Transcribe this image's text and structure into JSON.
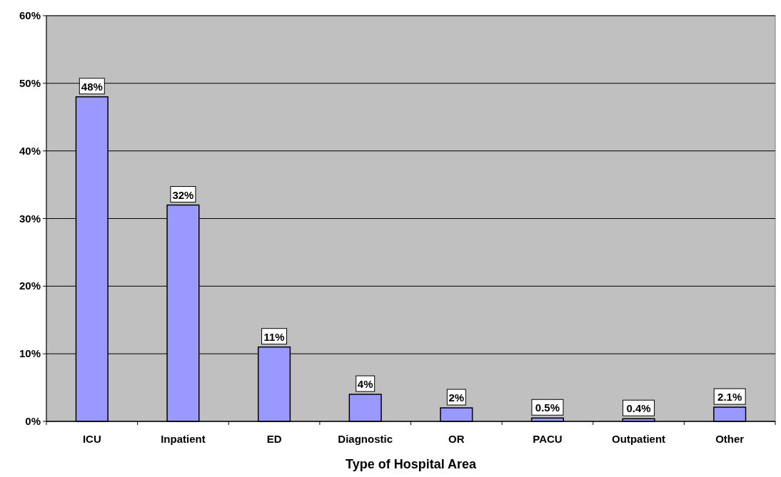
{
  "chart_data": {
    "type": "bar",
    "xlabel": "Type of Hospital Area",
    "categories": [
      "ICU",
      "Inpatient",
      "ED",
      "Diagnostic",
      "OR",
      "PACU",
      "Outpatient",
      "Other"
    ],
    "values": [
      48,
      32,
      11,
      4,
      2,
      0.5,
      0.4,
      2.1
    ],
    "value_labels": [
      "48%",
      "32%",
      "11%",
      "4%",
      "2%",
      "0.5%",
      "0.4%",
      "2.1%"
    ],
    "color": "#9999ff",
    "ylim": [
      0,
      60
    ],
    "yticks": [
      {
        "value": 0,
        "label": "0%"
      },
      {
        "value": 10,
        "label": "10%"
      },
      {
        "value": 20,
        "label": "20%"
      },
      {
        "value": 30,
        "label": "30%"
      },
      {
        "value": 40,
        "label": "40%"
      },
      {
        "value": 50,
        "label": "50%"
      },
      {
        "value": 60,
        "label": "60%"
      }
    ],
    "grid": "y"
  }
}
